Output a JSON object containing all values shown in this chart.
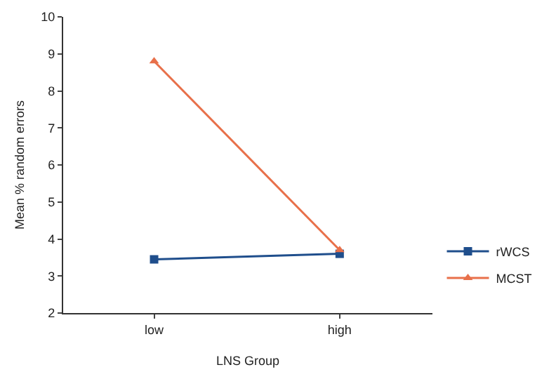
{
  "chart_data": {
    "type": "line",
    "xlabel": "LNS Group",
    "ylabel": "Mean % random errors",
    "categories": [
      "low",
      "high"
    ],
    "series": [
      {
        "name": "rWCS",
        "color": "#1f4e8c",
        "values": [
          3.45,
          3.6
        ],
        "marker": "square"
      },
      {
        "name": "MCST",
        "color": "#e8704a",
        "values": [
          8.8,
          3.7
        ],
        "marker": "triangle"
      }
    ],
    "ylim": [
      2,
      10
    ],
    "yticks": [
      2,
      3,
      4,
      5,
      6,
      7,
      8,
      9,
      10
    ],
    "grid": false,
    "legend": "right",
    "line_style": "solid"
  }
}
